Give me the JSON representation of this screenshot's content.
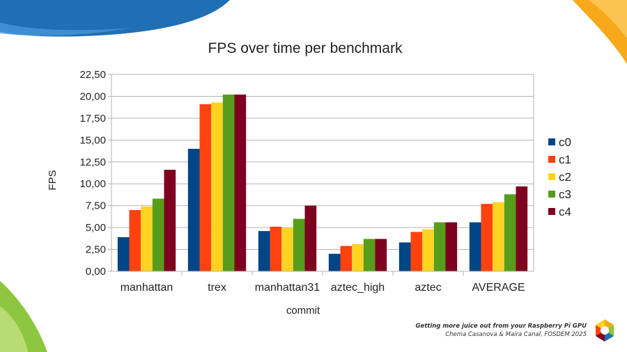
{
  "footer": {
    "title": "Getting more juice out from your Raspberry Pi GPU",
    "authors": "Chema Casanova & Maíra Canal, FOSDEM 2025"
  },
  "colors": {
    "series": [
      "#004586",
      "#ff420e",
      "#ffd320",
      "#579d1c",
      "#7e0021"
    ],
    "deco_blue": "#1f6fb2",
    "deco_orange": "#f7a81b",
    "deco_green": "#8dc63f"
  },
  "chart_data": {
    "type": "bar",
    "title": "FPS over time per benchmark",
    "xlabel": "commit",
    "ylabel": "FPS",
    "ylim": [
      0,
      22.5
    ],
    "yticks": [
      "0,00",
      "2,50",
      "5,00",
      "7,50",
      "10,00",
      "12,50",
      "15,00",
      "17,50",
      "20,00",
      "22,50"
    ],
    "categories": [
      "manhattan",
      "trex",
      "manhattan31",
      "aztec_high",
      "aztec",
      "AVERAGE"
    ],
    "series": [
      {
        "name": "c0",
        "values": [
          3.9,
          14.0,
          4.6,
          2.0,
          3.3,
          5.6
        ]
      },
      {
        "name": "c1",
        "values": [
          7.0,
          19.1,
          5.1,
          2.9,
          4.5,
          7.7
        ]
      },
      {
        "name": "c2",
        "values": [
          7.4,
          19.3,
          5.0,
          3.1,
          4.8,
          7.9
        ]
      },
      {
        "name": "c3",
        "values": [
          8.3,
          20.2,
          6.0,
          3.7,
          5.6,
          8.8
        ]
      },
      {
        "name": "c4",
        "values": [
          11.6,
          20.2,
          7.5,
          3.7,
          5.6,
          9.7
        ]
      }
    ],
    "grid": true,
    "legend_position": "right"
  }
}
